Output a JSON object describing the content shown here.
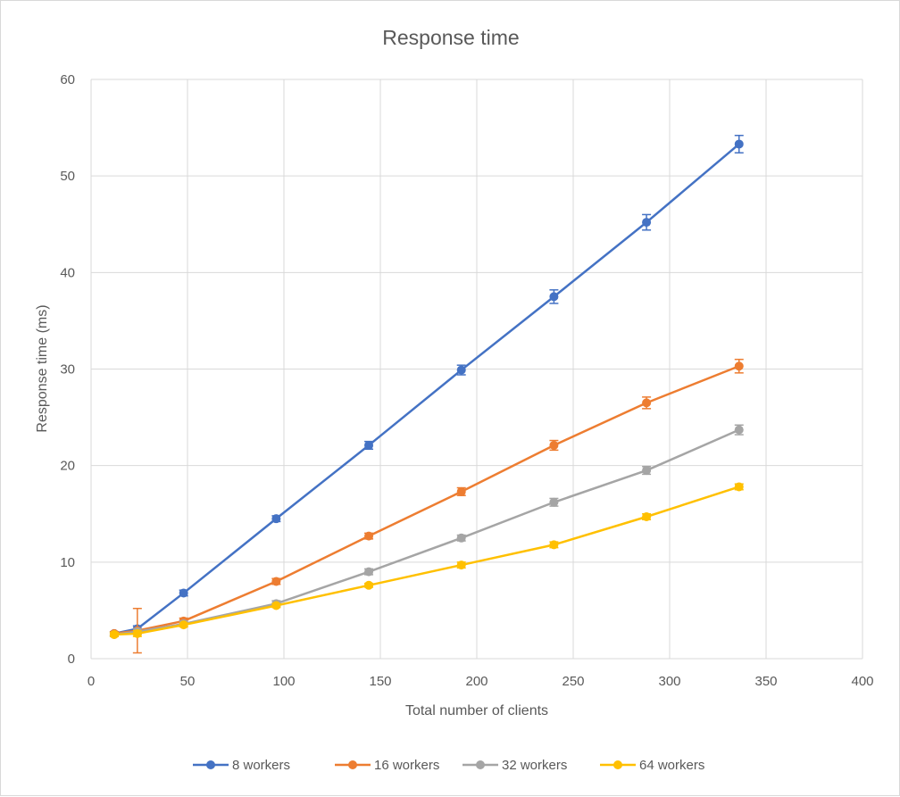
{
  "chart_data": {
    "type": "line",
    "title": "Response time",
    "xlabel": "Total number of clients",
    "ylabel": "Response time (ms)",
    "xlim": [
      0,
      400
    ],
    "ylim": [
      0,
      60
    ],
    "xticks": [
      0,
      50,
      100,
      150,
      200,
      250,
      300,
      350,
      400
    ],
    "yticks": [
      0,
      10,
      20,
      30,
      40,
      50,
      60
    ],
    "grid": true,
    "legend_position": "bottom",
    "series": [
      {
        "name": "8 workers",
        "color": "#4472C4",
        "x": [
          12,
          24,
          48,
          96,
          144,
          192,
          240,
          288,
          336
        ],
        "y": [
          2.6,
          3.1,
          6.8,
          14.5,
          22.1,
          29.9,
          37.5,
          45.2,
          53.3
        ],
        "err": [
          0.2,
          0.3,
          0.3,
          0.3,
          0.4,
          0.5,
          0.7,
          0.8,
          0.9
        ]
      },
      {
        "name": "16 workers",
        "color": "#ED7D31",
        "x": [
          12,
          24,
          48,
          96,
          144,
          192,
          240,
          288,
          336
        ],
        "y": [
          2.6,
          2.9,
          3.9,
          8.0,
          12.7,
          17.3,
          22.1,
          26.5,
          30.3
        ],
        "err": [
          0.2,
          2.3,
          0.3,
          0.3,
          0.3,
          0.4,
          0.5,
          0.6,
          0.7
        ]
      },
      {
        "name": "32 workers",
        "color": "#A5A5A5",
        "x": [
          12,
          24,
          48,
          96,
          144,
          192,
          240,
          288,
          336
        ],
        "y": [
          2.5,
          2.8,
          3.6,
          5.7,
          9.0,
          12.5,
          16.2,
          19.5,
          23.7
        ],
        "err": [
          0.2,
          0.3,
          0.3,
          0.3,
          0.3,
          0.3,
          0.4,
          0.4,
          0.5
        ]
      },
      {
        "name": "64 workers",
        "color": "#FFC000",
        "x": [
          12,
          24,
          48,
          96,
          144,
          192,
          240,
          288,
          336
        ],
        "y": [
          2.5,
          2.6,
          3.5,
          5.5,
          7.6,
          9.7,
          11.8,
          14.7,
          17.8
        ],
        "err": [
          0.2,
          0.3,
          0.2,
          0.2,
          0.2,
          0.3,
          0.3,
          0.3,
          0.3
        ]
      }
    ]
  }
}
